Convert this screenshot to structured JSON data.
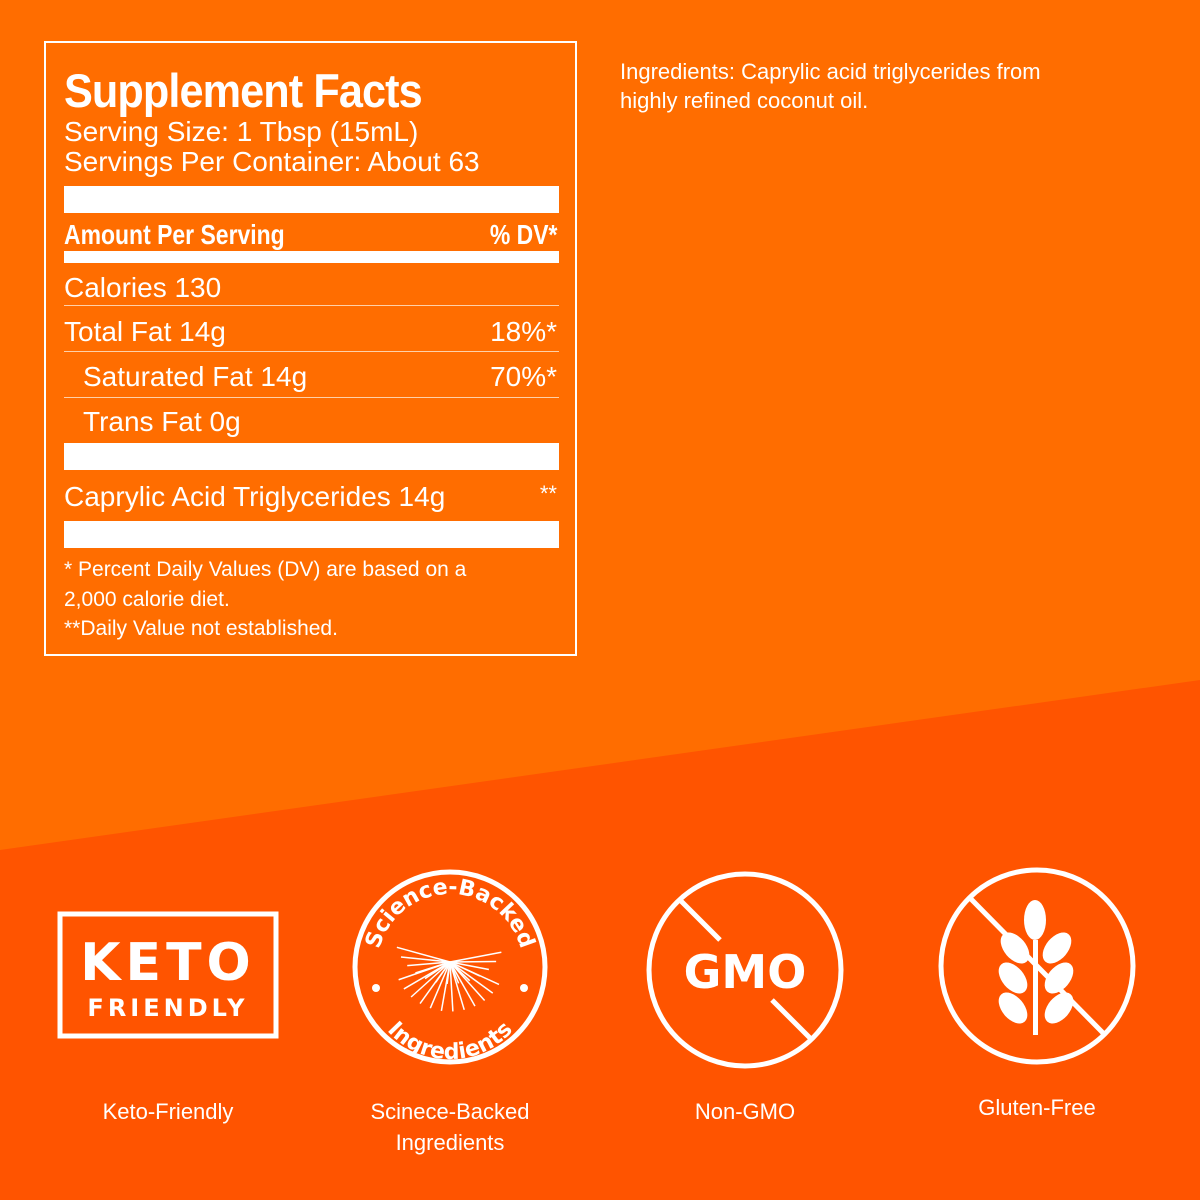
{
  "facts": {
    "title": "Supplement Facts",
    "serving_size": "Serving Size: 1 Tbsp (15mL)",
    "servings_per_container": "Servings Per Container: About 63",
    "amount_header": "Amount Per Serving",
    "dv_header": "% DV*",
    "rows": [
      {
        "label": "Calories 130",
        "dv": ""
      },
      {
        "label": "Total Fat 14g",
        "dv": "18%*"
      },
      {
        "label": "Saturated Fat 14g",
        "dv": "70%*"
      },
      {
        "label": "Trans Fat 0g",
        "dv": ""
      },
      {
        "label": "Caprylic Acid Triglycerides 14g",
        "dv": "**"
      }
    ],
    "footnote1": "*  Percent Daily Values (DV) are based on a",
    "footnote1b": "2,000 calorie diet.",
    "footnote2": "**Daily Value not established."
  },
  "ingredients": "Ingredients: Caprylic acid triglycerides from highly refined coconut oil.",
  "badges": [
    {
      "icon": "keto-friendly-icon",
      "logo_text": [
        "KETO",
        "FRIENDLY"
      ],
      "caption": "Keto-Friendly"
    },
    {
      "icon": "science-backed-icon",
      "logo_text": [
        "Science-Backed",
        "Ingredients"
      ],
      "caption": "Scinece-Backed Ingredients"
    },
    {
      "icon": "non-gmo-icon",
      "logo_text": [
        "GMO"
      ],
      "caption": "Non-GMO"
    },
    {
      "icon": "gluten-free-icon",
      "caption": "Gluten-Free"
    }
  ],
  "colors": {
    "upper_bg": "#ff6d00",
    "lower_bg": "#ff5400",
    "text": "#ffffff"
  }
}
